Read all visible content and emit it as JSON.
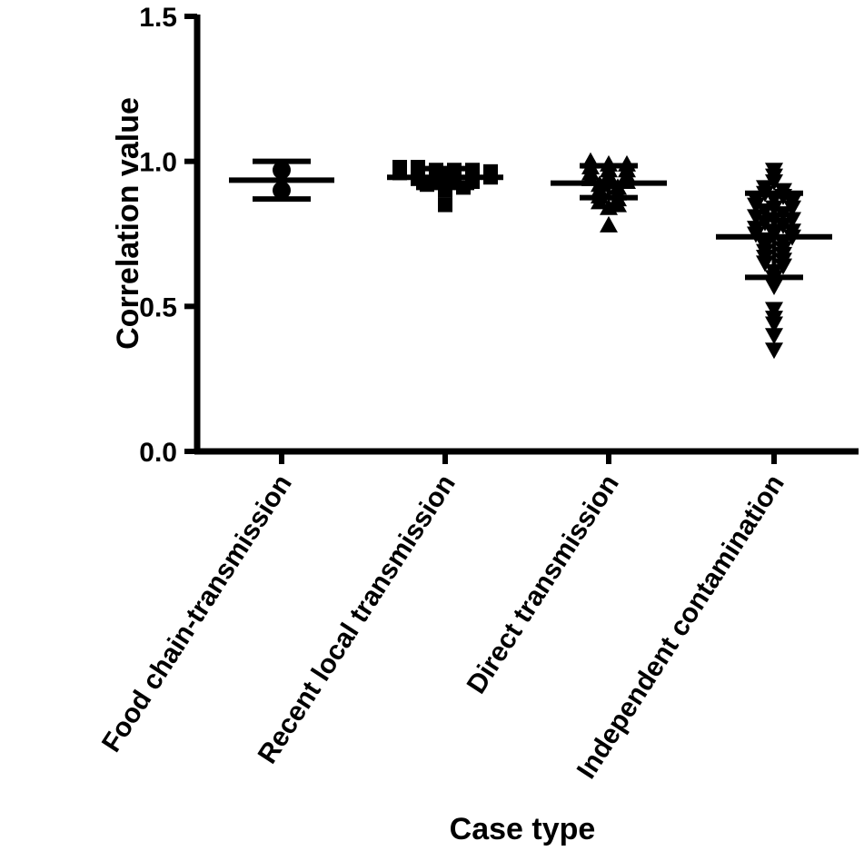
{
  "chart_data": {
    "type": "scatter",
    "ylabel": "Correlation value",
    "xlabel": "Case type",
    "ylim": [
      0,
      1.5
    ],
    "yticks": [
      0.0,
      0.5,
      1.0,
      1.5
    ],
    "ytick_labels": [
      "0.0",
      "0.5",
      "1.0",
      "1.5"
    ],
    "grid": false,
    "categories": [
      "Food chain-transmission",
      "Recent local transmission",
      "Direct transmission",
      "Independent contamination"
    ],
    "groups": [
      {
        "category": "Food chain-transmission",
        "marker": "circle",
        "mean": 0.935,
        "sd_upper": 1.0,
        "sd_lower": 0.87,
        "values": [
          0.97,
          0.9
        ]
      },
      {
        "category": "Recent local transmission",
        "marker": "square",
        "mean": 0.945,
        "sd_upper": 0.975,
        "sd_lower": 0.91,
        "values": [
          0.98,
          0.98,
          0.97,
          0.97,
          0.97,
          0.965,
          0.96,
          0.96,
          0.955,
          0.95,
          0.95,
          0.945,
          0.94,
          0.94,
          0.93,
          0.93,
          0.92,
          0.92,
          0.91,
          0.9,
          0.85
        ]
      },
      {
        "category": "Direct transmission",
        "marker": "triangle-up",
        "mean": 0.925,
        "sd_upper": 0.985,
        "sd_lower": 0.875,
        "values": [
          1.0,
          0.99,
          0.99,
          0.98,
          0.97,
          0.97,
          0.96,
          0.95,
          0.95,
          0.94,
          0.93,
          0.93,
          0.92,
          0.91,
          0.9,
          0.89,
          0.88,
          0.87,
          0.86,
          0.85,
          0.84,
          0.78
        ]
      },
      {
        "category": "Independent contamination",
        "marker": "triangle-down",
        "mean": 0.74,
        "sd_upper": 0.89,
        "sd_lower": 0.6,
        "values": [
          0.97,
          0.95,
          0.93,
          0.91,
          0.9,
          0.89,
          0.88,
          0.87,
          0.87,
          0.86,
          0.85,
          0.84,
          0.84,
          0.83,
          0.82,
          0.81,
          0.8,
          0.8,
          0.79,
          0.78,
          0.77,
          0.76,
          0.76,
          0.75,
          0.75,
          0.74,
          0.73,
          0.72,
          0.71,
          0.7,
          0.69,
          0.68,
          0.67,
          0.66,
          0.65,
          0.64,
          0.62,
          0.6,
          0.57,
          0.49,
          0.46,
          0.44,
          0.4,
          0.35
        ]
      }
    ]
  }
}
